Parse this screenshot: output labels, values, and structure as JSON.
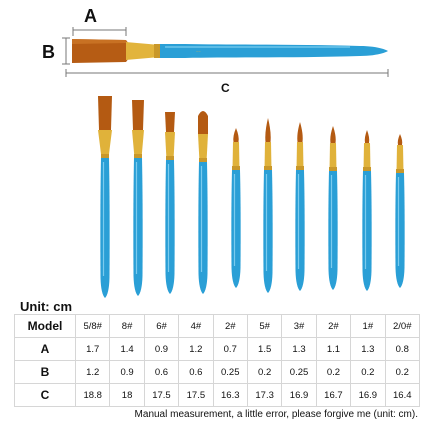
{
  "colors": {
    "handle": "#2a9fd6",
    "ferrule": "#e0b23a",
    "bristle": "#b45a12",
    "table_border": "#d6d6d6"
  },
  "diagram": {
    "label_a": "A",
    "label_b": "B",
    "label_c": "C"
  },
  "unit_label": "Unit: cm",
  "table": {
    "header_label": "Model",
    "models": [
      "5/8#",
      "8#",
      "6#",
      "4#",
      "2#",
      "5#",
      "3#",
      "2#",
      "1#",
      "2/0#"
    ],
    "rows": [
      {
        "label": "A",
        "values": [
          "1.7",
          "1.4",
          "0.9",
          "1.2",
          "0.7",
          "1.5",
          "1.3",
          "1.1",
          "1.3",
          "0.8"
        ]
      },
      {
        "label": "B",
        "values": [
          "1.2",
          "0.9",
          "0.6",
          "0.6",
          "0.25",
          "0.2",
          "0.25",
          "0.2",
          "0.2",
          "0.2"
        ]
      },
      {
        "label": "C",
        "values": [
          "18.8",
          "18",
          "17.5",
          "17.5",
          "16.3",
          "17.3",
          "16.9",
          "16.7",
          "16.9",
          "16.4"
        ]
      }
    ]
  },
  "footnote": "Manual measurement, a little error, please forgive me (unit: cm)."
}
